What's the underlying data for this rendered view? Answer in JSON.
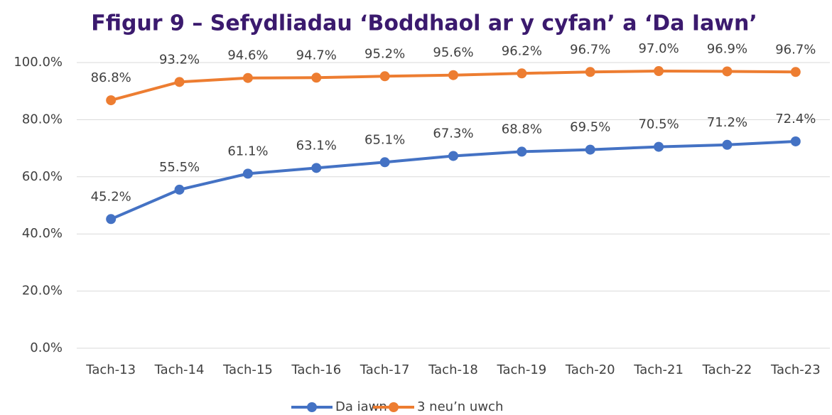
{
  "chart_data": {
    "type": "line",
    "title": "Ffigur 9 – Sefydliadau ‘Boddhaol ar y cyfan’ a ‘Da Iawn’",
    "categories": [
      "Tach-13",
      "Tach-14",
      "Tach-15",
      "Tach-16",
      "Tach-17",
      "Tach-18",
      "Tach-19",
      "Tach-20",
      "Tach-21",
      "Tach-22",
      "Tach-23"
    ],
    "series": [
      {
        "name": "Da iawn",
        "color": "#4472c4",
        "values": [
          45.2,
          55.5,
          61.1,
          63.1,
          65.1,
          67.3,
          68.8,
          69.5,
          70.5,
          71.2,
          72.4
        ],
        "value_labels": [
          "45.2%",
          "55.5%",
          "61.1%",
          "63.1%",
          "65.1%",
          "67.3%",
          "68.8%",
          "69.5%",
          "70.5%",
          "71.2%",
          "72.4%"
        ]
      },
      {
        "name": "3 neu’n uwch",
        "color": "#ed7d31",
        "values": [
          86.8,
          93.2,
          94.6,
          94.7,
          95.2,
          95.6,
          96.2,
          96.7,
          97.0,
          96.9,
          96.7
        ],
        "value_labels": [
          "86.8%",
          "93.2%",
          "94.6%",
          "94.7%",
          "95.2%",
          "95.6%",
          "96.2%",
          "96.7%",
          "97.0%",
          "96.9%",
          "96.7%"
        ]
      }
    ],
    "ylim": [
      0,
      100
    ],
    "yticks": [
      {
        "value": 0,
        "label": "0.0%"
      },
      {
        "value": 20,
        "label": "20.0%"
      },
      {
        "value": 40,
        "label": "40.0%"
      },
      {
        "value": 60,
        "label": "60.0%"
      },
      {
        "value": 80,
        "label": "80.0%"
      },
      {
        "value": 100,
        "label": "100.0%"
      }
    ],
    "grid": true,
    "legend": "bottom"
  }
}
